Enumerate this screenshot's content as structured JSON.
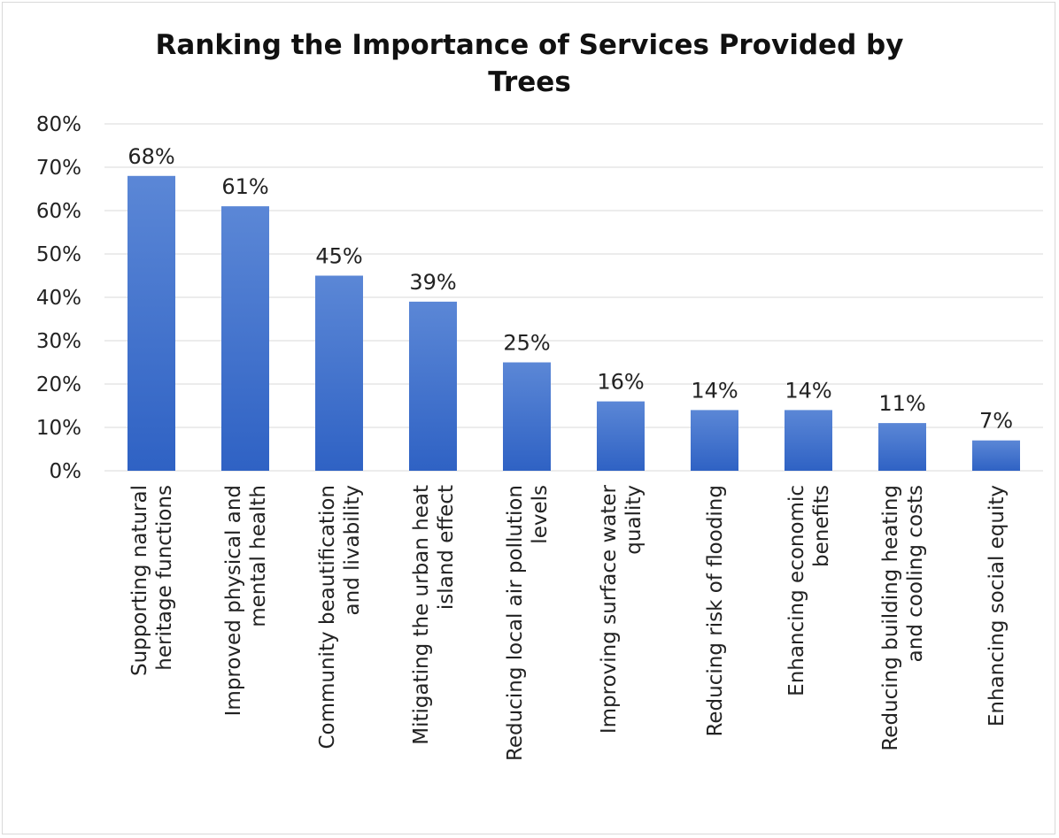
{
  "chart_data": {
    "type": "bar",
    "title_lines": [
      "Ranking the Importance of Services Provided by",
      "Trees"
    ],
    "categories": [
      [
        "Supporting natural",
        "heritage functions"
      ],
      [
        "Improved physical and",
        "mental health"
      ],
      [
        "Community beautification",
        "and livability"
      ],
      [
        "Mitigating the urban heat",
        "island effect"
      ],
      [
        "Reducing local air pollution",
        "levels"
      ],
      [
        "Improving surface water",
        "quality"
      ],
      [
        "Reducing risk of flooding"
      ],
      [
        "Enhancing economic",
        "benefits"
      ],
      [
        "Reducing building heating",
        "and cooling costs"
      ],
      [
        "Enhancing social equity"
      ]
    ],
    "values": [
      68,
      61,
      45,
      39,
      25,
      16,
      14,
      14,
      11,
      7
    ],
    "value_labels": [
      "68%",
      "61%",
      "45%",
      "39%",
      "25%",
      "16%",
      "14%",
      "14%",
      "11%",
      "7%"
    ],
    "yticks": [
      "0%",
      "10%",
      "20%",
      "30%",
      "40%",
      "50%",
      "60%",
      "70%",
      "80%"
    ],
    "ylim": [
      0,
      80
    ],
    "grid": true,
    "legend": "none",
    "colors": {
      "bar_top": "#5B87D6",
      "bar_bottom": "#2F62C4",
      "grid": "#d9d9d9"
    }
  }
}
